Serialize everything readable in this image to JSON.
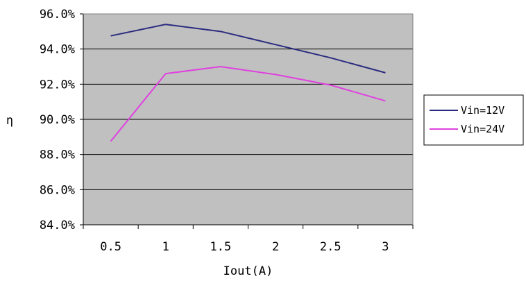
{
  "chart_data": {
    "type": "line",
    "xlabel": "Iout(A)",
    "ylabel": "η",
    "x": [
      0.5,
      1,
      1.5,
      2,
      2.5,
      3
    ],
    "x_tick_labels": [
      "0.5",
      "1",
      "1.5",
      "2",
      "2.5",
      "3"
    ],
    "y_tick_labels": [
      "96.0%",
      "94.0%",
      "92.0%",
      "90.0%",
      "88.0%",
      "86.0%",
      "84.0%"
    ],
    "ylim": [
      84.0,
      96.0
    ],
    "y_ticks": [
      96,
      94,
      92,
      90,
      88,
      86,
      84
    ],
    "grid": true,
    "legend_position": "right",
    "plot_background": "#c0c0c0",
    "series": [
      {
        "name": "Vin=12V",
        "color": "#2b2b80",
        "values": [
          94.75,
          95.4,
          95.0,
          94.25,
          93.5,
          92.65
        ]
      },
      {
        "name": "Vin=24V",
        "color": "#e040e0",
        "values": [
          88.75,
          92.6,
          93.0,
          92.55,
          91.95,
          91.05
        ]
      }
    ]
  }
}
